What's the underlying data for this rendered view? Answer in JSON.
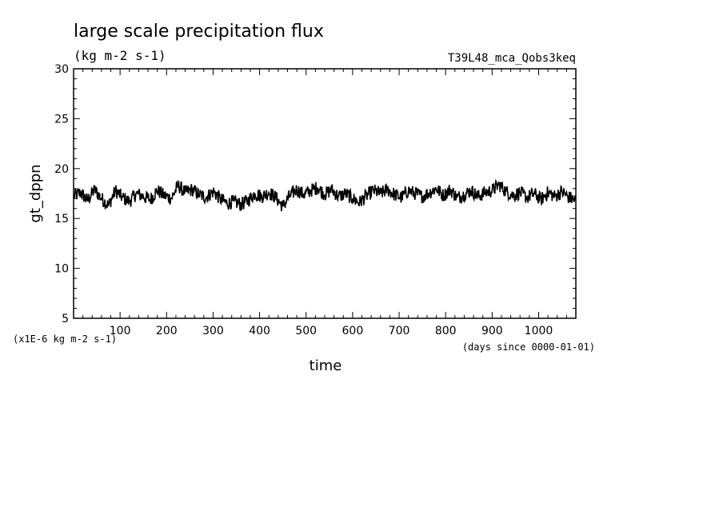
{
  "chart_data": {
    "type": "line",
    "title": "large scale precipitation flux",
    "units": "(kg m-2 s-1)",
    "experiment": "T39L48_mca_Qobs3keq",
    "ylabel": "gt_dppn",
    "xlabel": "time",
    "y_scale_note": "(x1E-6 kg m-2 s-1)",
    "x_unit_note": "(days since 0000-01-01)",
    "xlim": [
      0,
      1080
    ],
    "ylim": [
      5,
      30
    ],
    "x_ticks": [
      100,
      200,
      300,
      400,
      500,
      600,
      700,
      800,
      900,
      1000
    ],
    "x_tick_labels": [
      "100",
      "200",
      "300",
      "400",
      "500",
      "600",
      "700",
      "800",
      "900",
      "1000"
    ],
    "y_ticks": [
      5,
      10,
      15,
      20,
      25,
      30
    ],
    "y_tick_labels": [
      "5",
      "10",
      "15",
      "20",
      "25",
      "30"
    ],
    "grid": false,
    "series": [
      {
        "color": "#000000",
        "x": [
          0,
          15,
          30,
          45,
          60,
          75,
          90,
          105,
          120,
          135,
          150,
          165,
          180,
          195,
          210,
          225,
          240,
          255,
          270,
          285,
          300,
          315,
          330,
          345,
          360,
          375,
          390,
          405,
          420,
          435,
          450,
          465,
          480,
          495,
          510,
          525,
          540,
          555,
          570,
          585,
          600,
          615,
          630,
          645,
          660,
          675,
          690,
          705,
          720,
          735,
          750,
          765,
          780,
          795,
          810,
          825,
          840,
          855,
          870,
          885,
          900,
          915,
          930,
          945,
          960,
          975,
          990,
          1005,
          1020,
          1035,
          1050,
          1065,
          1080
        ],
        "y": [
          17.2,
          17.6,
          16.8,
          17.9,
          17.0,
          16.3,
          17.8,
          17.1,
          16.7,
          17.5,
          17.2,
          16.9,
          17.8,
          17.3,
          17.0,
          18.3,
          17.6,
          17.9,
          17.4,
          17.1,
          17.7,
          17.0,
          16.5,
          16.7,
          16.4,
          16.8,
          17.5,
          17.2,
          17.6,
          17.1,
          16.2,
          17.3,
          17.9,
          17.4,
          17.8,
          18.1,
          17.4,
          17.9,
          17.2,
          17.5,
          17.0,
          16.6,
          17.3,
          17.8,
          17.5,
          17.9,
          17.4,
          17.1,
          17.8,
          17.5,
          17.2,
          17.6,
          18.0,
          17.3,
          17.9,
          17.1,
          17.4,
          17.8,
          17.2,
          17.6,
          17.8,
          18.4,
          17.7,
          17.3,
          17.6,
          17.1,
          17.5,
          16.9,
          17.6,
          17.2,
          17.7,
          17.1,
          16.8
        ]
      }
    ]
  }
}
